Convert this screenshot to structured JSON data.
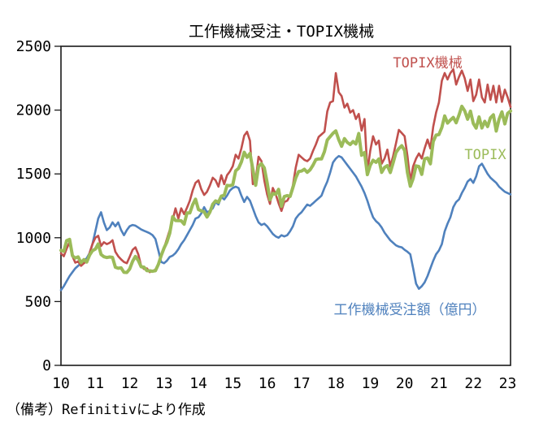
{
  "title": "工作機械受注・TOPIX機械",
  "note": "（備考）Refinitivにより作成",
  "colors": {
    "orders_blue": "#4F81BD",
    "topix_machinery_red": "#C0504D",
    "topix_green": "#9BBB59",
    "axis": "#1a1a1a",
    "background": "#ffffff"
  },
  "chart_data": {
    "type": "line",
    "title": "工作機械受注・TOPIX機械",
    "frequency": "monthly",
    "period": "2010-01 to 2023-02",
    "grid": false,
    "ylim": [
      0,
      2500
    ],
    "y_ticks": [
      0,
      500,
      1000,
      1500,
      2000,
      2500
    ],
    "x_tick_labels": [
      "10",
      "11",
      "12",
      "13",
      "14",
      "15",
      "16",
      "17",
      "18",
      "19",
      "20",
      "21",
      "22",
      "23"
    ],
    "annotations": [
      {
        "text": "TOPIX機械",
        "color": "#C0504D"
      },
      {
        "text": "TOPIX",
        "color": "#9BBB59"
      },
      {
        "text": "工作機械受注額（億円）",
        "color": "#4F81BD"
      }
    ],
    "series": [
      {
        "id": "machine-tool-orders",
        "name": "工作機械受注額（億円）",
        "color": "#4F81BD",
        "width": 2.6,
        "values": [
          590,
          620,
          660,
          700,
          730,
          760,
          780,
          800,
          820,
          840,
          880,
          950,
          1050,
          1150,
          1200,
          1120,
          1060,
          1080,
          1120,
          1090,
          1120,
          1060,
          1020,
          1060,
          1090,
          1100,
          1095,
          1080,
          1065,
          1055,
          1045,
          1035,
          1020,
          990,
          900,
          810,
          800,
          820,
          850,
          860,
          880,
          910,
          950,
          980,
          1020,
          1060,
          1100,
          1150,
          1160,
          1190,
          1240,
          1200,
          1210,
          1230,
          1280,
          1260,
          1320,
          1300,
          1330,
          1370,
          1390,
          1400,
          1390,
          1330,
          1280,
          1320,
          1290,
          1230,
          1170,
          1120,
          1100,
          1110,
          1090,
          1060,
          1030,
          1010,
          1000,
          1020,
          1010,
          1020,
          1050,
          1090,
          1150,
          1180,
          1200,
          1230,
          1260,
          1250,
          1270,
          1290,
          1310,
          1330,
          1390,
          1440,
          1510,
          1590,
          1620,
          1640,
          1630,
          1600,
          1570,
          1540,
          1510,
          1480,
          1440,
          1400,
          1350,
          1290,
          1220,
          1160,
          1130,
          1110,
          1080,
          1040,
          1010,
          980,
          960,
          940,
          930,
          925,
          905,
          890,
          870,
          760,
          640,
          600,
          620,
          650,
          700,
          760,
          820,
          870,
          900,
          950,
          1050,
          1110,
          1160,
          1240,
          1280,
          1300,
          1350,
          1390,
          1440,
          1460,
          1430,
          1480,
          1560,
          1580,
          1540,
          1500,
          1470,
          1450,
          1430,
          1400,
          1380,
          1360,
          1350,
          1340
        ]
      },
      {
        "id": "topix-machinery",
        "name": "TOPIX機械",
        "color": "#C0504D",
        "width": 2.6,
        "values": [
          878,
          855,
          915,
          965,
          855,
          805,
          815,
          780,
          800,
          815,
          880,
          950,
          1000,
          1015,
          935,
          965,
          950,
          960,
          980,
          890,
          855,
          830,
          810,
          800,
          850,
          905,
          925,
          870,
          780,
          755,
          760,
          730,
          740,
          750,
          785,
          855,
          920,
          990,
          1060,
          1140,
          1230,
          1150,
          1230,
          1185,
          1235,
          1290,
          1370,
          1430,
          1450,
          1380,
          1335,
          1360,
          1410,
          1470,
          1450,
          1400,
          1490,
          1420,
          1490,
          1520,
          1560,
          1650,
          1620,
          1700,
          1800,
          1830,
          1760,
          1420,
          1450,
          1635,
          1600,
          1450,
          1340,
          1265,
          1390,
          1340,
          1270,
          1210,
          1280,
          1290,
          1330,
          1410,
          1550,
          1650,
          1630,
          1610,
          1600,
          1620,
          1680,
          1730,
          1790,
          1810,
          1830,
          1990,
          2060,
          2070,
          2290,
          2140,
          2110,
          2020,
          2050,
          1980,
          2000,
          1930,
          1970,
          1840,
          1930,
          1520,
          1680,
          1795,
          1730,
          1760,
          1580,
          1620,
          1690,
          1560,
          1640,
          1740,
          1845,
          1820,
          1795,
          1640,
          1440,
          1560,
          1620,
          1660,
          1620,
          1700,
          1770,
          1700,
          1870,
          1980,
          2060,
          2230,
          2290,
          2240,
          2290,
          2320,
          2200,
          2260,
          2310,
          2250,
          2150,
          2240,
          2070,
          2120,
          2240,
          2100,
          2060,
          2200,
          2080,
          2190,
          2060,
          2190,
          2065,
          2160,
          2100,
          2025
        ]
      },
      {
        "id": "topix",
        "name": "TOPIX",
        "color": "#9BBB59",
        "width": 4,
        "values": [
          901,
          894,
          978,
          987,
          859,
          841,
          850,
          804,
          829,
          810,
          864,
          898,
          911,
          951,
          869,
          851,
          845,
          849,
          846,
          769,
          761,
          764,
          729,
          728,
          755,
          815,
          854,
          822,
          772,
          770,
          742,
          741,
          737,
          742,
          791,
          860,
          919,
          966,
          1035,
          1165,
          1135,
          1134,
          1133,
          1106,
          1194,
          1194,
          1258,
          1302,
          1221,
          1211,
          1203,
          1162,
          1201,
          1263,
          1289,
          1278,
          1326,
          1333,
          1410,
          1408,
          1415,
          1524,
          1543,
          1593,
          1670,
          1630,
          1660,
          1537,
          1411,
          1558,
          1580,
          1547,
          1432,
          1297,
          1347,
          1340,
          1379,
          1246,
          1323,
          1330,
          1323,
          1393,
          1469,
          1519,
          1522,
          1536,
          1513,
          1532,
          1568,
          1612,
          1618,
          1618,
          1675,
          1766,
          1792,
          1818,
          1837,
          1768,
          1716,
          1777,
          1747,
          1730,
          1754,
          1735,
          1817,
          1646,
          1667,
          1494,
          1567,
          1607,
          1591,
          1617,
          1512,
          1551,
          1565,
          1511,
          1587,
          1667,
          1699,
          1721,
          1684,
          1510,
          1403,
          1464,
          1563,
          1558,
          1496,
          1618,
          1625,
          1579,
          1754,
          1804,
          1808,
          1864,
          1954,
          1898,
          1922,
          1943,
          1901,
          1961,
          2030,
          1995,
          1928,
          1992,
          1895,
          1859,
          1946,
          1860,
          1912,
          1871,
          1940,
          1963,
          1836,
          1929,
          1986,
          1892,
          1975,
          1993
        ]
      }
    ]
  }
}
